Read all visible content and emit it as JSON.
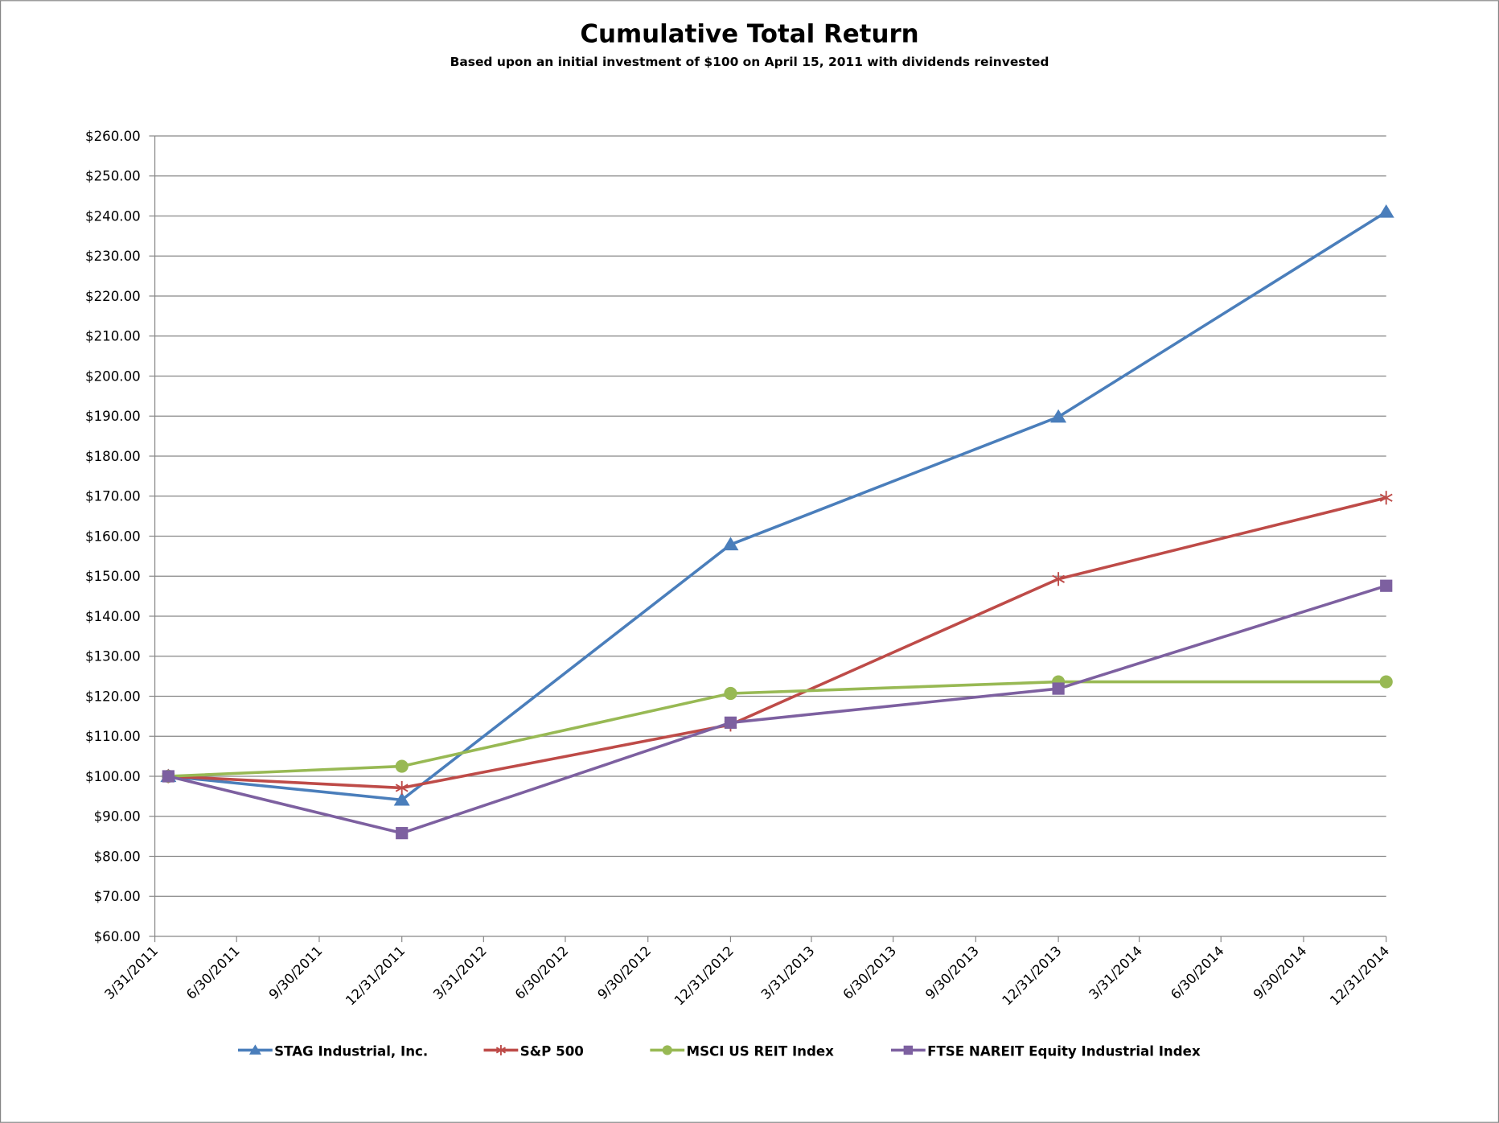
{
  "chart_data": {
    "type": "line",
    "title": "Cumulative Total Return",
    "subtitle": "Based upon an initial investment of $100 on April 15, 2011 with dividends reinvested",
    "xlabel": "",
    "ylabel": "",
    "ylim": [
      60,
      260
    ],
    "y_ticks": [
      "$60.00",
      "$70.00",
      "$80.00",
      "$90.00",
      "$100.00",
      "$110.00",
      "$120.00",
      "$130.00",
      "$140.00",
      "$150.00",
      "$160.00",
      "$170.00",
      "$180.00",
      "$190.00",
      "$200.00",
      "$210.00",
      "$220.00",
      "$230.00",
      "$240.00",
      "$250.00",
      "$260.00"
    ],
    "x_ticks": [
      "3/31/2011",
      "6/30/2011",
      "9/30/2011",
      "12/31/2011",
      "3/31/2012",
      "6/30/2012",
      "9/30/2012",
      "12/31/2012",
      "3/31/2013",
      "6/30/2013",
      "9/30/2013",
      "12/31/2013",
      "3/31/2014",
      "6/30/2014",
      "9/30/2014",
      "12/31/2014"
    ],
    "x": [
      "2011-04-15",
      "2011-12-31",
      "2012-12-31",
      "2013-12-31",
      "2014-12-31"
    ],
    "grid": "horizontal",
    "legend": "bottom",
    "series": [
      {
        "name": "STAG Industrial, Inc.",
        "color": "#4a7ebb",
        "marker": "triangle",
        "values": [
          100,
          94.1,
          157.9,
          189.8,
          241.0
        ]
      },
      {
        "name": "S&P 500",
        "color": "#be4b48",
        "marker": "asterisk",
        "values": [
          100,
          97.1,
          112.9,
          149.3,
          169.6
        ]
      },
      {
        "name": "MSCI US REIT Index",
        "color": "#98b954",
        "marker": "circle",
        "values": [
          100,
          102.5,
          120.7,
          123.6,
          123.6
        ]
      },
      {
        "name": "FTSE NAREIT Equity Industrial Index",
        "color": "#7d60a0",
        "marker": "square",
        "values": [
          100,
          85.8,
          113.4,
          121.9,
          147.6
        ]
      }
    ]
  }
}
